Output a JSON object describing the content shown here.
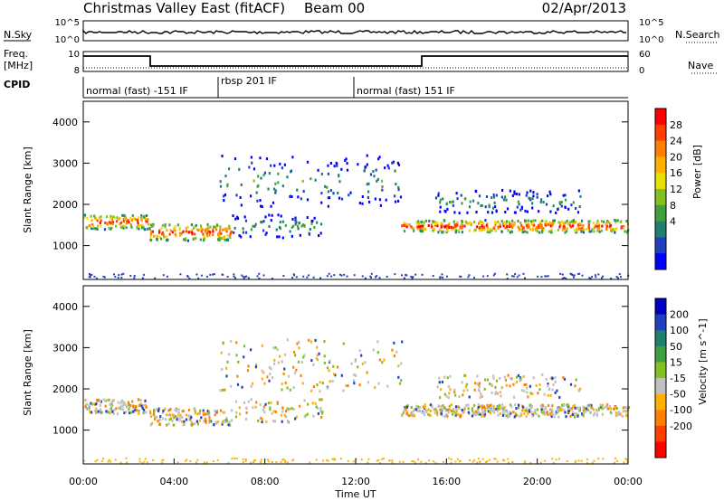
{
  "header": {
    "title": "Christmas Valley East (fitACF)",
    "beam": "Beam 00",
    "date": "02/Apr/2013"
  },
  "top_panels": {
    "nsky_label": "N.Sky",
    "nsky_ticks": [
      "10^5",
      "10^0"
    ],
    "nsearch_label": "N.Search",
    "nsearch_ticks": [
      "10^5",
      "10^0"
    ],
    "freq_label": "Freq.",
    "freq_unit": "[MHz]",
    "freq_ticks": [
      "10",
      "8"
    ],
    "nave_label": "Nave",
    "nave_ticks": [
      "60",
      "0"
    ],
    "cpid_label": "CPID",
    "cpid_segments": [
      {
        "label": "normal (fast) -151 IF",
        "start_h": 0,
        "end_h": 6
      },
      {
        "label": "rbsp 201 IF",
        "start_h": 6,
        "end_h": 12
      },
      {
        "label": "normal (fast) 151 IF",
        "start_h": 12,
        "end_h": 24
      }
    ]
  },
  "chart_data": [
    {
      "type": "heatmap",
      "name": "power",
      "ylabel": "Slant Range [km]",
      "yticks": [
        "1000",
        "2000",
        "3000",
        "4000"
      ],
      "ylim": [
        180,
        4500
      ],
      "xlim": [
        0,
        24
      ],
      "colorbar_label": "Power [dB]",
      "colorbar_ticks": [
        "28",
        "24",
        "20",
        "16",
        "12",
        "8",
        "4"
      ],
      "colorbar_colors": [
        "#ff0000",
        "#ff4000",
        "#ff8000",
        "#ffb000",
        "#e8e000",
        "#80c020",
        "#40a040",
        "#208070",
        "#2040c0",
        "#0000ff"
      ],
      "scatter_bands": [
        {
          "t0": 0.0,
          "t1": 2.9,
          "r_center": 1600,
          "r_width": 350,
          "strong": true
        },
        {
          "t0": 2.9,
          "t1": 6.5,
          "r_center": 1350,
          "r_width": 400,
          "strong": true
        },
        {
          "t0": 6.5,
          "t1": 10.5,
          "r_center": 1500,
          "r_width": 400,
          "strong": false
        },
        {
          "t0": 6.0,
          "t1": 14.0,
          "r_center": 2600,
          "r_width": 900,
          "strong": false
        },
        {
          "t0": 14.0,
          "t1": 15.0,
          "r_center": 1500,
          "r_width": 250,
          "strong": true
        },
        {
          "t0": 15.0,
          "t1": 24.0,
          "r_center": 1500,
          "r_width": 300,
          "strong": true
        },
        {
          "t0": 15.5,
          "t1": 22.0,
          "r_center": 2100,
          "r_width": 400,
          "strong": false
        }
      ]
    },
    {
      "type": "heatmap",
      "name": "velocity",
      "ylabel": "Slant Range [km]",
      "yticks": [
        "1000",
        "2000",
        "3000",
        "4000"
      ],
      "ylim": [
        180,
        4500
      ],
      "xlim": [
        0,
        24
      ],
      "xlabel": "Time UT",
      "xticks": [
        "00:00",
        "04:00",
        "08:00",
        "12:00",
        "16:00",
        "20:00",
        "00:00"
      ],
      "colorbar_label": "Velocity [m s^-1]",
      "colorbar_ticks": [
        "200",
        "100",
        "50",
        "15",
        "-15",
        "-50",
        "-100",
        "-200"
      ],
      "colorbar_colors": [
        "#0000c0",
        "#2040c0",
        "#208070",
        "#40a040",
        "#80c020",
        "#c0c0c0",
        "#ffb000",
        "#ff8000",
        "#ff4000",
        "#ff0000"
      ]
    }
  ]
}
